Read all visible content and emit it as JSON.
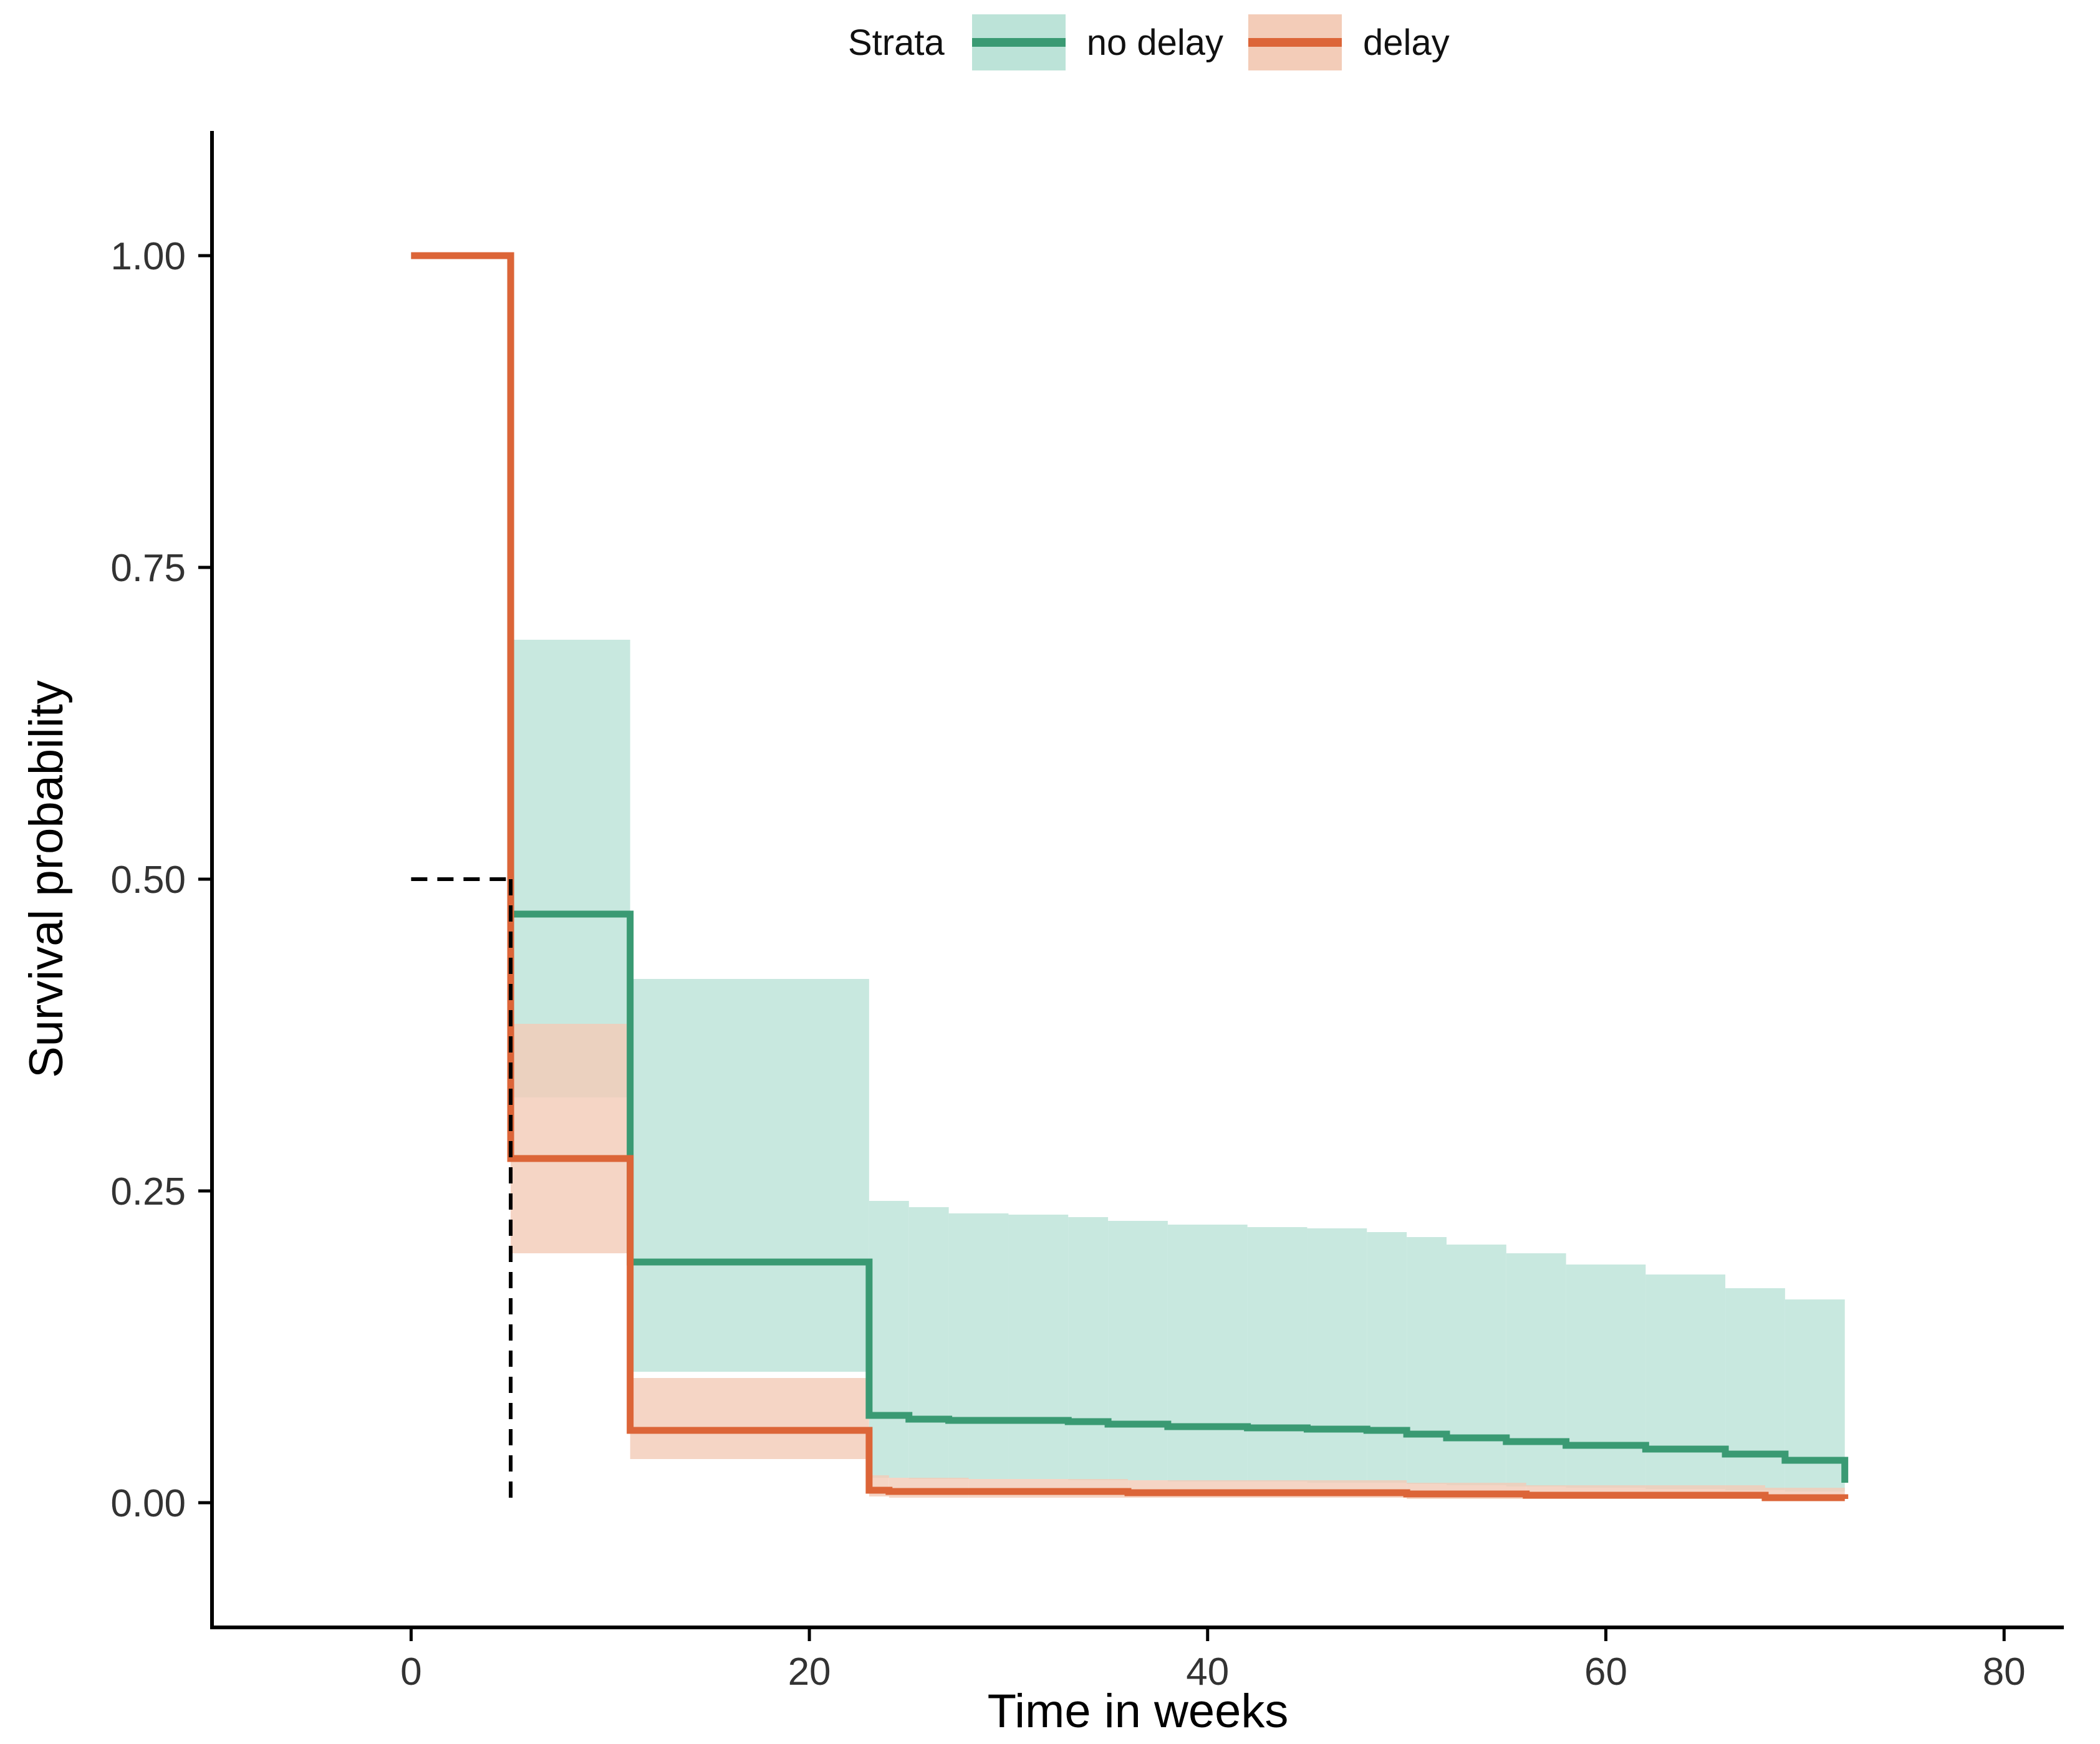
{
  "legend": {
    "title": "Strata"
  },
  "chart_data": {
    "type": "line",
    "step": true,
    "xlabel": "Time in weeks",
    "ylabel": "Survival probability",
    "xlim": [
      -10,
      83
    ],
    "ylim": [
      -0.1,
      1.1
    ],
    "xticks": [
      0,
      20,
      40,
      60,
      80
    ],
    "yticks": [
      0.0,
      0.25,
      0.5,
      0.75,
      1.0
    ],
    "ytick_labels": [
      "0.00",
      "0.25",
      "0.50",
      "0.75",
      "1.00"
    ],
    "grid": false,
    "legend_position": "top",
    "median_line": {
      "y": 0.5,
      "x": 5
    },
    "series": [
      {
        "name": "no delay",
        "color": "#3a9a73",
        "band_color": "#bce3d8",
        "t": [
          5,
          11,
          23,
          25,
          27,
          30,
          33,
          35,
          38,
          42,
          45,
          48,
          50,
          52,
          55,
          58,
          62,
          66,
          69,
          72
        ],
        "s": [
          0.472,
          0.193,
          0.07,
          0.067,
          0.066,
          0.066,
          0.065,
          0.063,
          0.061,
          0.06,
          0.059,
          0.058,
          0.055,
          0.052,
          0.049,
          0.046,
          0.043,
          0.039,
          0.034,
          0.016
        ],
        "lower": [
          0.325,
          0.105,
          0.02,
          0.019,
          0.019,
          0.019,
          0.018,
          0.018,
          0.017,
          0.017,
          0.016,
          0.016,
          0.015,
          0.014,
          0.013,
          0.012,
          0.011,
          0.01,
          0.009,
          0.008
        ],
        "upper": [
          0.692,
          0.42,
          0.242,
          0.237,
          0.232,
          0.231,
          0.229,
          0.226,
          0.223,
          0.221,
          0.22,
          0.217,
          0.213,
          0.207,
          0.2,
          0.191,
          0.183,
          0.172,
          0.163,
          0.158
        ]
      },
      {
        "name": "delay",
        "color": "#dc6538",
        "band_color": "#f3ccb8",
        "t": [
          5,
          11,
          23,
          24,
          28,
          36,
          50,
          56,
          68,
          72
        ],
        "s": [
          0.276,
          0.058,
          0.01,
          0.009,
          0.009,
          0.008,
          0.007,
          0.006,
          0.004,
          0.003
        ],
        "lower": [
          0.2,
          0.035,
          0.005,
          0.004,
          0.004,
          0.004,
          0.003,
          0.003,
          0.002,
          0.001
        ],
        "upper": [
          0.384,
          0.1,
          0.022,
          0.02,
          0.019,
          0.018,
          0.016,
          0.014,
          0.012,
          0.01
        ]
      }
    ]
  }
}
